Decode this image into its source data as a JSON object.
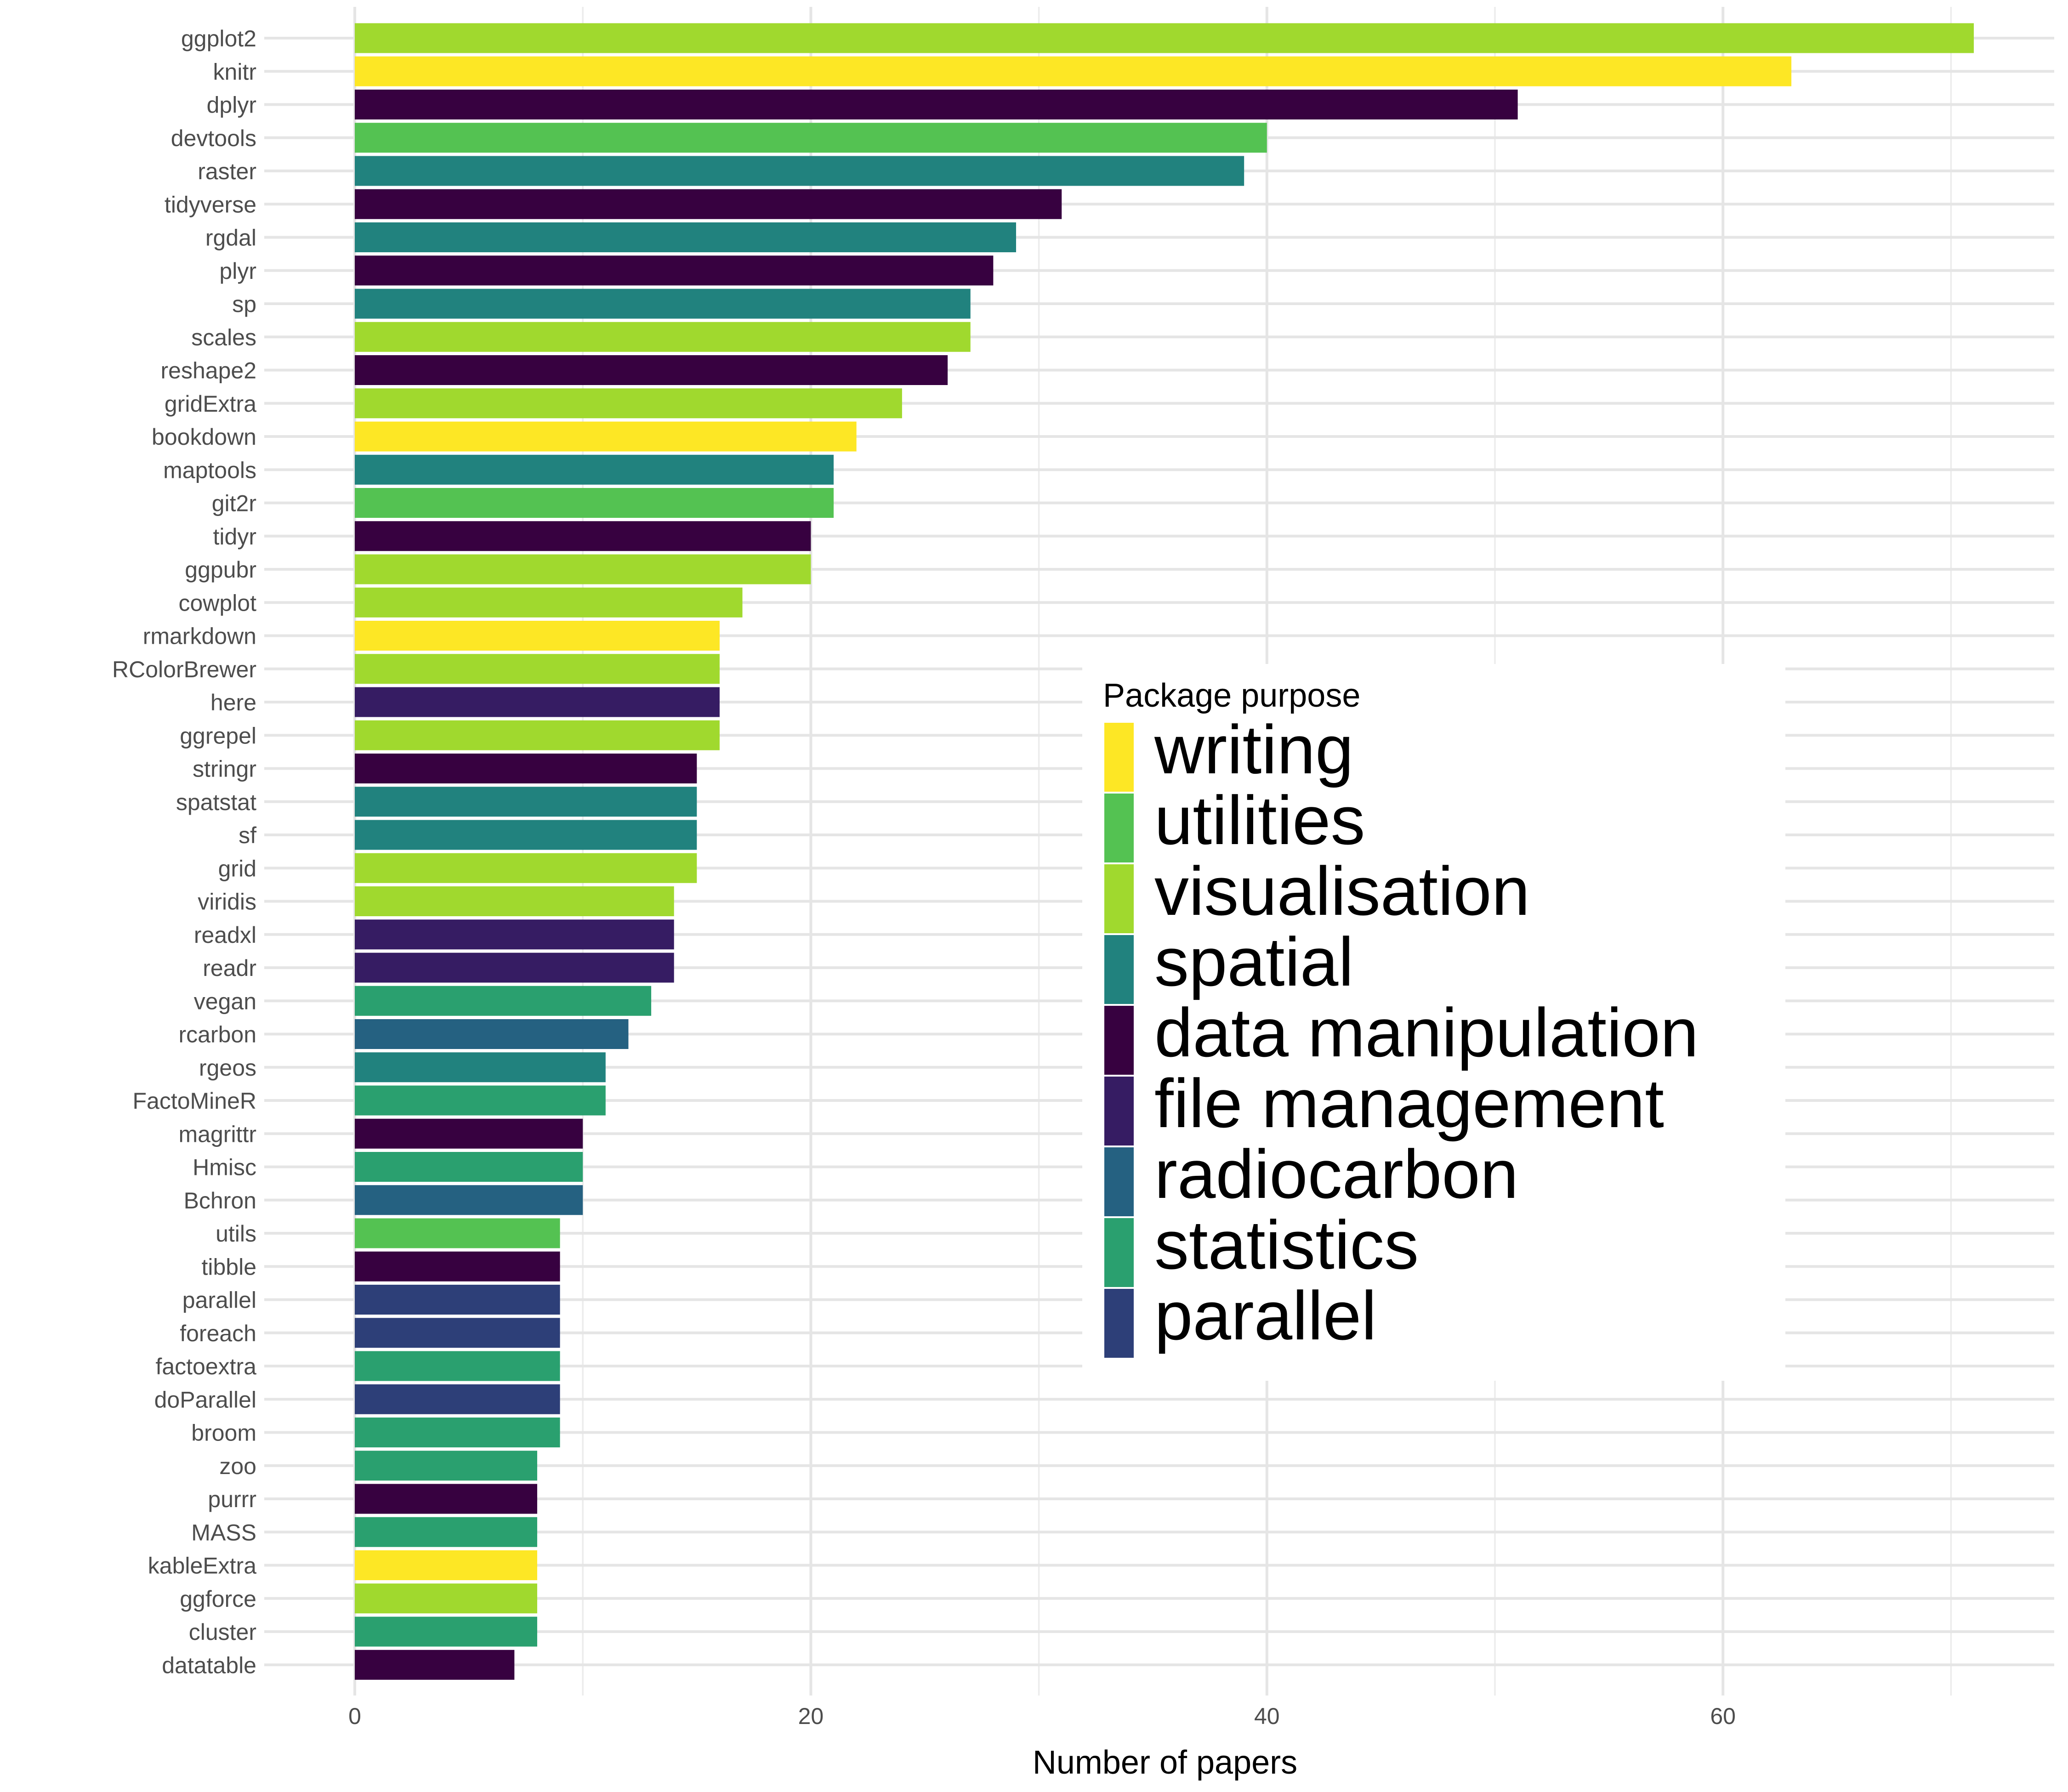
{
  "chart_data": {
    "type": "bar",
    "orientation": "horizontal",
    "title": "",
    "xlabel": "Number of papers",
    "ylabel": "",
    "xlim": [
      -4,
      74
    ],
    "xticks": [
      0,
      20,
      40,
      60
    ],
    "grid": true,
    "legend": {
      "title": "Package purpose",
      "placement": "inside-right",
      "entries": [
        {
          "name": "writing",
          "color": "#fde725"
        },
        {
          "name": "utilities",
          "color": "#54c252"
        },
        {
          "name": "visualisation",
          "color": "#a0d92e"
        },
        {
          "name": "spatial",
          "color": "#21827e"
        },
        {
          "name": "data manipulation",
          "color": "#370140"
        },
        {
          "name": "file management",
          "color": "#361c63"
        },
        {
          "name": "radiocarbon",
          "color": "#256181"
        },
        {
          "name": "statistics",
          "color": "#2aa06f"
        },
        {
          "name": "parallel",
          "color": "#2d3f78"
        }
      ]
    },
    "bars": [
      {
        "name": "ggplot2",
        "value": 71,
        "purpose": "visualisation"
      },
      {
        "name": "knitr",
        "value": 63,
        "purpose": "writing"
      },
      {
        "name": "dplyr",
        "value": 51,
        "purpose": "data manipulation"
      },
      {
        "name": "devtools",
        "value": 40,
        "purpose": "utilities"
      },
      {
        "name": "raster",
        "value": 39,
        "purpose": "spatial"
      },
      {
        "name": "tidyverse",
        "value": 31,
        "purpose": "data manipulation"
      },
      {
        "name": "rgdal",
        "value": 29,
        "purpose": "spatial"
      },
      {
        "name": "plyr",
        "value": 28,
        "purpose": "data manipulation"
      },
      {
        "name": "sp",
        "value": 27,
        "purpose": "spatial"
      },
      {
        "name": "scales",
        "value": 27,
        "purpose": "visualisation"
      },
      {
        "name": "reshape2",
        "value": 26,
        "purpose": "data manipulation"
      },
      {
        "name": "gridExtra",
        "value": 24,
        "purpose": "visualisation"
      },
      {
        "name": "bookdown",
        "value": 22,
        "purpose": "writing"
      },
      {
        "name": "maptools",
        "value": 21,
        "purpose": "spatial"
      },
      {
        "name": "git2r",
        "value": 21,
        "purpose": "utilities"
      },
      {
        "name": "tidyr",
        "value": 20,
        "purpose": "data manipulation"
      },
      {
        "name": "ggpubr",
        "value": 20,
        "purpose": "visualisation"
      },
      {
        "name": "cowplot",
        "value": 17,
        "purpose": "visualisation"
      },
      {
        "name": "rmarkdown",
        "value": 16,
        "purpose": "writing"
      },
      {
        "name": "RColorBrewer",
        "value": 16,
        "purpose": "visualisation"
      },
      {
        "name": "here",
        "value": 16,
        "purpose": "file management"
      },
      {
        "name": "ggrepel",
        "value": 16,
        "purpose": "visualisation"
      },
      {
        "name": "stringr",
        "value": 15,
        "purpose": "data manipulation"
      },
      {
        "name": "spatstat",
        "value": 15,
        "purpose": "spatial"
      },
      {
        "name": "sf",
        "value": 15,
        "purpose": "spatial"
      },
      {
        "name": "grid",
        "value": 15,
        "purpose": "visualisation"
      },
      {
        "name": "viridis",
        "value": 14,
        "purpose": "visualisation"
      },
      {
        "name": "readxl",
        "value": 14,
        "purpose": "file management"
      },
      {
        "name": "readr",
        "value": 14,
        "purpose": "file management"
      },
      {
        "name": "vegan",
        "value": 13,
        "purpose": "statistics"
      },
      {
        "name": "rcarbon",
        "value": 12,
        "purpose": "radiocarbon"
      },
      {
        "name": "rgeos",
        "value": 11,
        "purpose": "spatial"
      },
      {
        "name": "FactoMineR",
        "value": 11,
        "purpose": "statistics"
      },
      {
        "name": "magrittr",
        "value": 10,
        "purpose": "data manipulation"
      },
      {
        "name": "Hmisc",
        "value": 10,
        "purpose": "statistics"
      },
      {
        "name": "Bchron",
        "value": 10,
        "purpose": "radiocarbon"
      },
      {
        "name": "utils",
        "value": 9,
        "purpose": "utilities"
      },
      {
        "name": "tibble",
        "value": 9,
        "purpose": "data manipulation"
      },
      {
        "name": "parallel",
        "value": 9,
        "purpose": "parallel"
      },
      {
        "name": "foreach",
        "value": 9,
        "purpose": "parallel"
      },
      {
        "name": "factoextra",
        "value": 9,
        "purpose": "statistics"
      },
      {
        "name": "doParallel",
        "value": 9,
        "purpose": "parallel"
      },
      {
        "name": "broom",
        "value": 9,
        "purpose": "statistics"
      },
      {
        "name": "zoo",
        "value": 8,
        "purpose": "statistics"
      },
      {
        "name": "purrr",
        "value": 8,
        "purpose": "data manipulation"
      },
      {
        "name": "MASS",
        "value": 8,
        "purpose": "statistics"
      },
      {
        "name": "kableExtra",
        "value": 8,
        "purpose": "writing"
      },
      {
        "name": "ggforce",
        "value": 8,
        "purpose": "visualisation"
      },
      {
        "name": "cluster",
        "value": 8,
        "purpose": "statistics"
      },
      {
        "name": "datatable",
        "value": 7,
        "purpose": "data manipulation"
      }
    ]
  }
}
